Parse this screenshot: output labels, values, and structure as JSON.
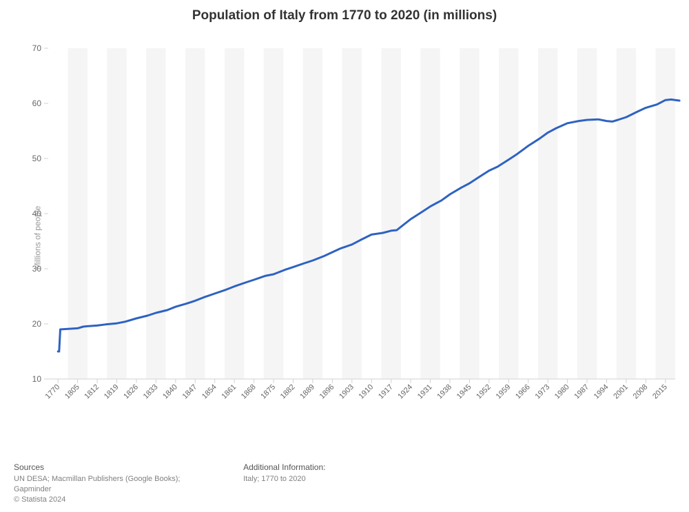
{
  "title": "Population of Italy from 1770 to 2020 (in millions)",
  "title_fontsize": 19,
  "chart": {
    "type": "line",
    "background_color": "#ffffff",
    "band_color": "#f5f5f6",
    "axis_color": "#cfd2d6",
    "tick_label_color": "#666666",
    "tick_fontsize": 12,
    "y_axis_title": "Millions of people",
    "y_axis_title_color": "#999999",
    "y_axis_title_fontsize": 12,
    "ylim": [
      10,
      70
    ],
    "ytick_step": 10,
    "x_labels": [
      "1770",
      "1805",
      "1812",
      "1819",
      "1826",
      "1833",
      "1840",
      "1847",
      "1854",
      "1861",
      "1868",
      "1875",
      "1882",
      "1889",
      "1896",
      "1903",
      "1910",
      "1917",
      "1924",
      "1931",
      "1938",
      "1945",
      "1952",
      "1959",
      "1966",
      "1973",
      "1980",
      "1987",
      "1994",
      "2001",
      "2008",
      "2015"
    ],
    "x_label_tick_step": 1,
    "line_color": "#2e62c1",
    "line_width": 3,
    "series": [
      {
        "x": "1770",
        "y": 15.0
      },
      {
        "x": "1772",
        "y": 15.0
      },
      {
        "x": "1774",
        "y": 19.0
      },
      {
        "x": "1805",
        "y": 19.2
      },
      {
        "x": "1807",
        "y": 19.5
      },
      {
        "x": "1809",
        "y": 19.6
      },
      {
        "x": "1812",
        "y": 19.7
      },
      {
        "x": "1815",
        "y": 19.9
      },
      {
        "x": "1819",
        "y": 20.1
      },
      {
        "x": "1822",
        "y": 20.4
      },
      {
        "x": "1826",
        "y": 21.0
      },
      {
        "x": "1830",
        "y": 21.5
      },
      {
        "x": "1833",
        "y": 22.0
      },
      {
        "x": "1837",
        "y": 22.5
      },
      {
        "x": "1840",
        "y": 23.1
      },
      {
        "x": "1844",
        "y": 23.7
      },
      {
        "x": "1847",
        "y": 24.2
      },
      {
        "x": "1850",
        "y": 24.8
      },
      {
        "x": "1854",
        "y": 25.5
      },
      {
        "x": "1858",
        "y": 26.2
      },
      {
        "x": "1861",
        "y": 26.8
      },
      {
        "x": "1865",
        "y": 27.5
      },
      {
        "x": "1868",
        "y": 28.0
      },
      {
        "x": "1872",
        "y": 28.7
      },
      {
        "x": "1875",
        "y": 29.0
      },
      {
        "x": "1879",
        "y": 29.8
      },
      {
        "x": "1882",
        "y": 30.3
      },
      {
        "x": "1886",
        "y": 31.0
      },
      {
        "x": "1889",
        "y": 31.5
      },
      {
        "x": "1893",
        "y": 32.3
      },
      {
        "x": "1896",
        "y": 33.0
      },
      {
        "x": "1899",
        "y": 33.7
      },
      {
        "x": "1903",
        "y": 34.4
      },
      {
        "x": "1906",
        "y": 35.2
      },
      {
        "x": "1910",
        "y": 36.2
      },
      {
        "x": "1914",
        "y": 36.5
      },
      {
        "x": "1917",
        "y": 36.9
      },
      {
        "x": "1919",
        "y": 37.0
      },
      {
        "x": "1921",
        "y": 37.8
      },
      {
        "x": "1924",
        "y": 39.0
      },
      {
        "x": "1928",
        "y": 40.3
      },
      {
        "x": "1931",
        "y": 41.3
      },
      {
        "x": "1935",
        "y": 42.4
      },
      {
        "x": "1938",
        "y": 43.5
      },
      {
        "x": "1942",
        "y": 44.7
      },
      {
        "x": "1945",
        "y": 45.5
      },
      {
        "x": "1948",
        "y": 46.5
      },
      {
        "x": "1952",
        "y": 47.8
      },
      {
        "x": "1955",
        "y": 48.5
      },
      {
        "x": "1959",
        "y": 49.8
      },
      {
        "x": "1962",
        "y": 50.8
      },
      {
        "x": "1966",
        "y": 52.3
      },
      {
        "x": "1970",
        "y": 53.6
      },
      {
        "x": "1973",
        "y": 54.7
      },
      {
        "x": "1976",
        "y": 55.5
      },
      {
        "x": "1980",
        "y": 56.4
      },
      {
        "x": "1984",
        "y": 56.8
      },
      {
        "x": "1987",
        "y": 57.0
      },
      {
        "x": "1991",
        "y": 57.1
      },
      {
        "x": "1994",
        "y": 56.8
      },
      {
        "x": "1996",
        "y": 56.7
      },
      {
        "x": "1998",
        "y": 57.0
      },
      {
        "x": "2001",
        "y": 57.5
      },
      {
        "x": "2005",
        "y": 58.5
      },
      {
        "x": "2008",
        "y": 59.2
      },
      {
        "x": "2012",
        "y": 59.8
      },
      {
        "x": "2015",
        "y": 60.6
      },
      {
        "x": "2017",
        "y": 60.7
      },
      {
        "x": "2020",
        "y": 60.5
      }
    ]
  },
  "footer": {
    "sources_heading": "Sources",
    "sources_body": "UN DESA; Macmillan Publishers (Google Books);\nGapminder",
    "copyright": "© Statista 2024",
    "additional_heading": "Additional Information:",
    "additional_body": "Italy; 1770 to 2020"
  }
}
